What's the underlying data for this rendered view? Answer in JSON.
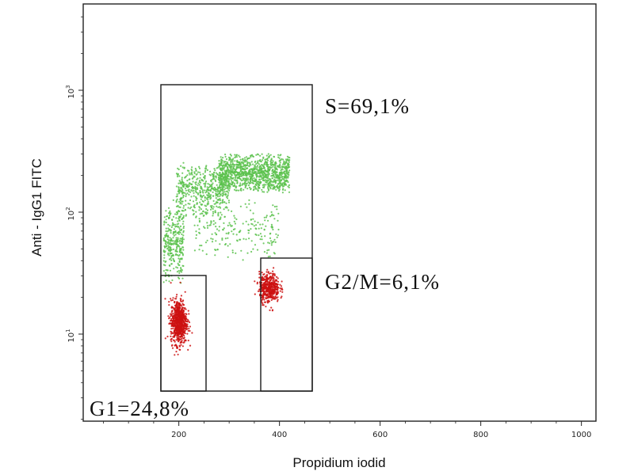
{
  "chart_data": {
    "type": "scatter",
    "title": "",
    "xlabel": "Propidium iodid",
    "ylabel": "Anti - IgG1 FITC",
    "xlim": [
      0,
      1000
    ],
    "ylog": true,
    "ylim_log10": [
      0.4,
      1.72
    ],
    "x_ticks": [
      200,
      400,
      600,
      800,
      1000
    ],
    "x_tick_labels": [
      "200",
      "400",
      "600",
      "800",
      "1000"
    ],
    "y_ticks": [
      {
        "base": "10",
        "exp": "1",
        "value": 10
      },
      {
        "base": "10",
        "exp": "2",
        "value": 100
      },
      {
        "base": "10",
        "exp": "3",
        "value": 1000
      }
    ],
    "grid": false,
    "colors": {
      "s_phase": "#5cc24e",
      "g1_g2m": "#cc1010",
      "frame": "#222222"
    },
    "series": [
      {
        "phase": "S",
        "color": "#5cc24e",
        "clusters": [
          {
            "x_range": [
              170,
              210
            ],
            "y_range": [
              25,
              130
            ],
            "n": 320
          },
          {
            "x_range": [
              195,
              300
            ],
            "y_range": [
              90,
              260
            ],
            "n": 500
          },
          {
            "x_range": [
              280,
              420
            ],
            "y_range": [
              140,
              310
            ],
            "n": 1100
          },
          {
            "x_range": [
              230,
              400
            ],
            "y_range": [
              40,
              130
            ],
            "n": 220
          }
        ]
      },
      {
        "phase": "G1",
        "color": "#cc1010",
        "clusters": [
          {
            "x_center": 200,
            "y_log_center": 1.1,
            "x_sd": 8,
            "y_log_sd": 0.09,
            "n": 750
          }
        ]
      },
      {
        "phase": "G2/M",
        "color": "#cc1010",
        "clusters": [
          {
            "x_center": 380,
            "y_log_center": 1.38,
            "x_sd": 10,
            "y_log_sd": 0.06,
            "n": 450
          }
        ]
      }
    ],
    "gates": [
      {
        "name": "S",
        "label": "S=69,1%",
        "x": [
          155,
          460
        ],
        "y": [
          6,
          1100
        ]
      },
      {
        "name": "G1",
        "label": "G1=24,8%",
        "x": [
          155,
          245
        ],
        "y": [
          6,
          28
        ]
      },
      {
        "name": "G2/M",
        "label": "G2/M=6,1%",
        "x": [
          350,
          460
        ],
        "y": [
          6,
          42
        ]
      }
    ]
  }
}
